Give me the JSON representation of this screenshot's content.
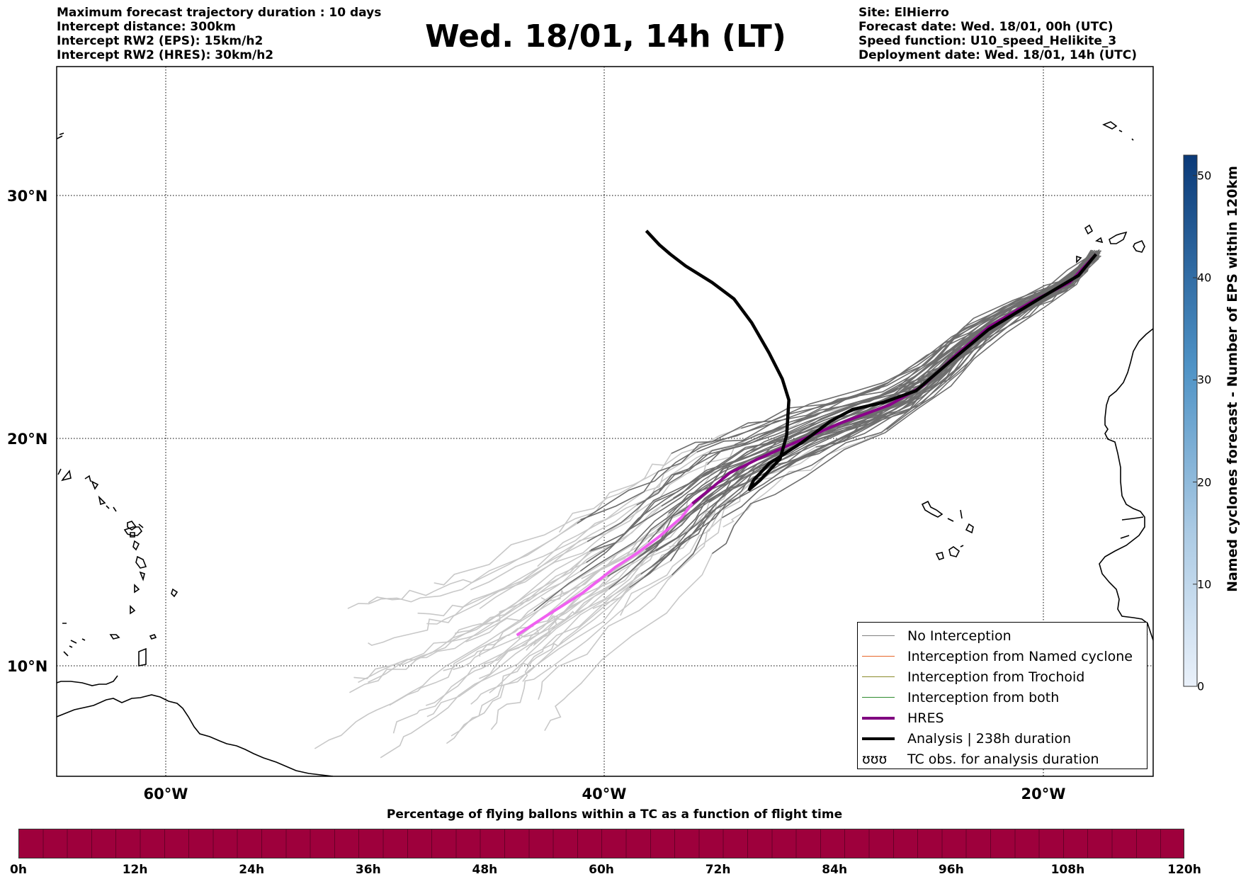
{
  "header_left": [
    "Maximum forecast trajectory duration : 10 days",
    "Intercept distance: 300km",
    "Intercept RW2 (EPS):  15km/h2",
    "Intercept RW2 (HRES): 30km/h2"
  ],
  "header_right": [
    "Site: ElHierro",
    "Forecast date: Wed. 18/01, 00h (UTC)",
    "Speed function: U10_speed_Helikite_3",
    "Deployment date: Wed. 18/01, 14h (UTC)"
  ],
  "title": "Wed. 18/01, 14h (LT)",
  "lat_labels": [
    "30°N",
    "20°N",
    "10°N"
  ],
  "lon_labels": [
    "60°W",
    "40°W",
    "20°W"
  ],
  "legend": [
    {
      "label": "No Interception",
      "color": "#7f7f7f",
      "kind": "thin"
    },
    {
      "label": "Interception from Named cyclone",
      "color": "#e8662a",
      "kind": "thin"
    },
    {
      "label": "Interception from Trochoid",
      "color": "#8a8a2a",
      "kind": "thin"
    },
    {
      "label": "Interception from both",
      "color": "#2e8b2e",
      "kind": "thin"
    },
    {
      "label": "HRES",
      "color": "#800080",
      "kind": "thick"
    },
    {
      "label": "Analysis | 238h duration",
      "color": "#000000",
      "kind": "thick"
    },
    {
      "label": "TC obs. for analysis duration",
      "color": "#000000",
      "kind": "symbol",
      "symbol": "ʊʊʊ"
    }
  ],
  "colorbar": {
    "title": "Named cyclones forecast - Number of EPS within 120km",
    "ticks": [
      "0",
      "10",
      "20",
      "30",
      "40",
      "50"
    ],
    "max": 52,
    "color_low": "#e6eef8",
    "color_high": "#0b3a78"
  },
  "bar_caption": "Percentage of flying ballons within a TC as a function of flight time",
  "bar_ticks": [
    "0h",
    "12h",
    "24h",
    "36h",
    "48h",
    "60h",
    "72h",
    "84h",
    "96h",
    "108h",
    "120h"
  ],
  "bar_color": "#9e003c",
  "map": {
    "lon_range": [
      -65,
      -15
    ],
    "lat_range": [
      5,
      35
    ],
    "site": "ElHierro",
    "colors": {
      "eps_near": "#6e6e6e",
      "eps_far": "#c8c8c8",
      "hres_near": "#8a008a",
      "hres_far": "#f060f0",
      "analysis": "#000000"
    },
    "hres_track": [
      [
        -17.6,
        27.5
      ],
      [
        -18.8,
        26.3
      ],
      [
        -20.5,
        25.5
      ],
      [
        -22.5,
        24.4
      ],
      [
        -24,
        23.2
      ],
      [
        -25.5,
        21.9
      ],
      [
        -27,
        21.1
      ],
      [
        -29.3,
        20.3
      ],
      [
        -31.3,
        19.5
      ],
      [
        -33,
        18.8
      ],
      [
        -34.3,
        18.2
      ],
      [
        -35.2,
        17.5
      ],
      [
        -36,
        16.9
      ],
      [
        -36.5,
        16.3
      ],
      [
        -37.5,
        15.5
      ],
      [
        -38.5,
        14.8
      ],
      [
        -39.5,
        14.2
      ],
      [
        -41,
        13.1
      ],
      [
        -42.7,
        12.1
      ],
      [
        -44,
        11.3
      ]
    ],
    "analysis_track": [
      [
        -17.6,
        27.5
      ],
      [
        -18.4,
        26.6
      ],
      [
        -20.2,
        25.6
      ],
      [
        -22.5,
        24.3
      ],
      [
        -24.3,
        22.9
      ],
      [
        -25.8,
        21.7
      ],
      [
        -27.3,
        21.2
      ],
      [
        -28.7,
        20.9
      ],
      [
        -29.7,
        20.4
      ],
      [
        -31,
        19.5
      ],
      [
        -32.5,
        18.6
      ],
      [
        -33.2,
        17.9
      ],
      [
        -33.4,
        17.5
      ],
      [
        -32.9,
        17.9
      ],
      [
        -32,
        18.8
      ],
      [
        -31.7,
        19.8
      ],
      [
        -31.6,
        21.3
      ],
      [
        -31.9,
        22.2
      ],
      [
        -32.5,
        23.3
      ],
      [
        -33.3,
        24.6
      ],
      [
        -34.1,
        25.6
      ],
      [
        -35.1,
        26.3
      ],
      [
        -36.3,
        27.0
      ],
      [
        -37,
        27.5
      ],
      [
        -37.5,
        27.9
      ],
      [
        -38.1,
        28.5
      ]
    ]
  }
}
